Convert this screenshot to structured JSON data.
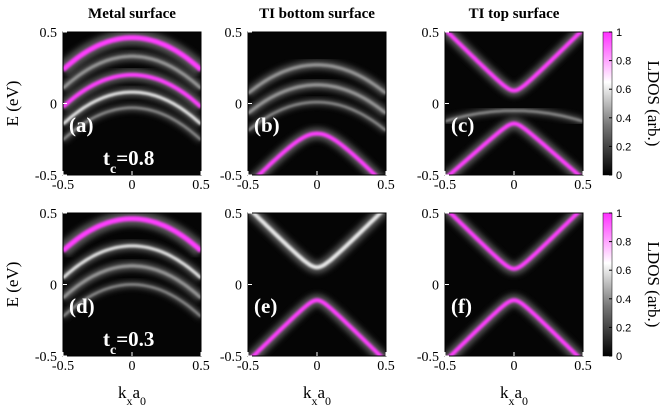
{
  "chart_data": [
    {
      "type": "heatmap",
      "title": "Metal surface",
      "panel_label": "(a)",
      "annotation": [
        "t",
        "c",
        "=0.8"
      ],
      "y_label": "E (eV)",
      "xlim": [
        -0.5,
        0.5
      ],
      "xticks": [
        -0.5,
        0,
        0.5
      ],
      "ylim": [
        -0.5,
        0.5
      ],
      "yticks": [
        -0.5,
        0,
        0.5
      ]
    },
    {
      "type": "heatmap",
      "title": "TI bottom surface",
      "panel_label": "(b)",
      "xlim": [
        -0.5,
        0.5
      ],
      "xticks": [
        -0.5,
        0,
        0.5
      ],
      "ylim": [
        -0.5,
        0.5
      ],
      "yticks": [
        -0.5,
        0,
        0.5
      ]
    },
    {
      "type": "heatmap",
      "title": "TI top surface",
      "panel_label": "(c)",
      "xlim": [
        -0.5,
        0.5
      ],
      "xticks": [
        -0.5,
        0,
        0.5
      ],
      "ylim": [
        -0.5,
        0.5
      ],
      "yticks": [
        -0.5,
        0,
        0.5
      ],
      "colorbar": {
        "label": "LDOS (arb.)",
        "lim": [
          0,
          1
        ],
        "ticks": [
          0,
          0.2,
          0.4,
          0.6,
          0.8,
          1
        ]
      }
    },
    {
      "type": "heatmap",
      "panel_label": "(d)",
      "annotation": [
        "t",
        "c",
        "=0.3"
      ],
      "y_label": "E (eV)",
      "x_label": [
        "k",
        "x",
        "a",
        "0"
      ],
      "xlim": [
        -0.5,
        0.5
      ],
      "xticks": [
        -0.5,
        0,
        0.5
      ],
      "ylim": [
        -0.5,
        0.5
      ],
      "yticks": [
        -0.5,
        0,
        0.5
      ]
    },
    {
      "type": "heatmap",
      "panel_label": "(e)",
      "x_label": [
        "k",
        "x",
        "a",
        "0"
      ],
      "xlim": [
        -0.5,
        0.5
      ],
      "xticks": [
        -0.5,
        0,
        0.5
      ],
      "ylim": [
        -0.5,
        0.5
      ],
      "yticks": [
        -0.5,
        0,
        0.5
      ]
    },
    {
      "type": "heatmap",
      "panel_label": "(f)",
      "x_label": [
        "k",
        "x",
        "a",
        "0"
      ],
      "xlim": [
        -0.5,
        0.5
      ],
      "xticks": [
        -0.5,
        0,
        0.5
      ],
      "ylim": [
        -0.5,
        0.5
      ],
      "yticks": [
        -0.5,
        0,
        0.5
      ],
      "colorbar": {
        "label": "LDOS (arb.)",
        "lim": [
          0,
          1
        ],
        "ticks": [
          0,
          0.2,
          0.4,
          0.6,
          0.8,
          1
        ]
      }
    }
  ]
}
